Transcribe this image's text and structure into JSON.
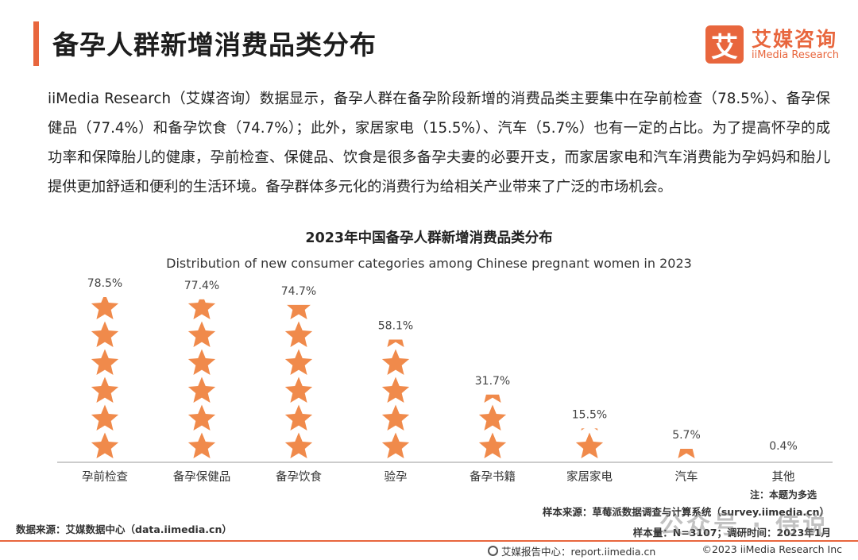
{
  "header": {
    "title": "备孕人群新增消费品类分布",
    "logo_mark": "艾",
    "logo_cn": "艾媒咨询",
    "logo_en": "iiMedia Research"
  },
  "intro_text": "iiMedia Research（艾媒咨询）数据显示，备孕人群在备孕阶段新增的消费品类主要集中在孕前检查（78.5%）、备孕保健品（77.4%）和备孕饮食（74.7%）；此外，家居家电（15.5%）、汽车（5.7%）也有一定的占比。为了提高怀孕的成功率和保障胎儿的健康，孕前检查、保健品、饮食是很多备孕夫妻的必要开支，而家居家电和汽车消费能为孕妈妈和胎儿提供更加舒适和便利的生活环境。备孕群体多元化的消费行为给相关产业带来了广泛的市场机会。",
  "chart_data": {
    "type": "bar",
    "title": "2023年中国备孕人群新增消费品类分布",
    "subtitle": "Distribution of new consumer categories among Chinese pregnant women in 2023",
    "categories": [
      "孕前检查",
      "备孕保健品",
      "备孕饮食",
      "验孕",
      "备孕书籍",
      "家居家电",
      "汽车",
      "其他"
    ],
    "values": [
      78.5,
      77.4,
      74.7,
      58.1,
      31.7,
      15.5,
      5.7,
      0.4
    ],
    "value_labels": [
      "78.5%",
      "77.4%",
      "74.7%",
      "58.1%",
      "31.7%",
      "15.5%",
      "5.7%",
      "0.4%"
    ],
    "unit": "%",
    "marker": "star",
    "bar_color": "#f08a4b",
    "ylim": [
      0,
      80
    ],
    "grid": false
  },
  "notes": {
    "note": "注：本题为多选",
    "sample_source": "样本来源：草莓派数据调查与计算系统（survey.iimedia.cn）",
    "sample_info": "样本量：N=3107；调研时间：2023年1月",
    "data_source": "数据来源：艾媒数据中心（data.iimedia.cn）"
  },
  "footer": {
    "left": "艾媒报告中心：report.iimedia.cn",
    "right": "©2023  iiMedia Research  Inc"
  },
  "watermark": "公众号 · 侍说",
  "colors": {
    "accent": "#e8663d",
    "star": "#f08a4b"
  }
}
